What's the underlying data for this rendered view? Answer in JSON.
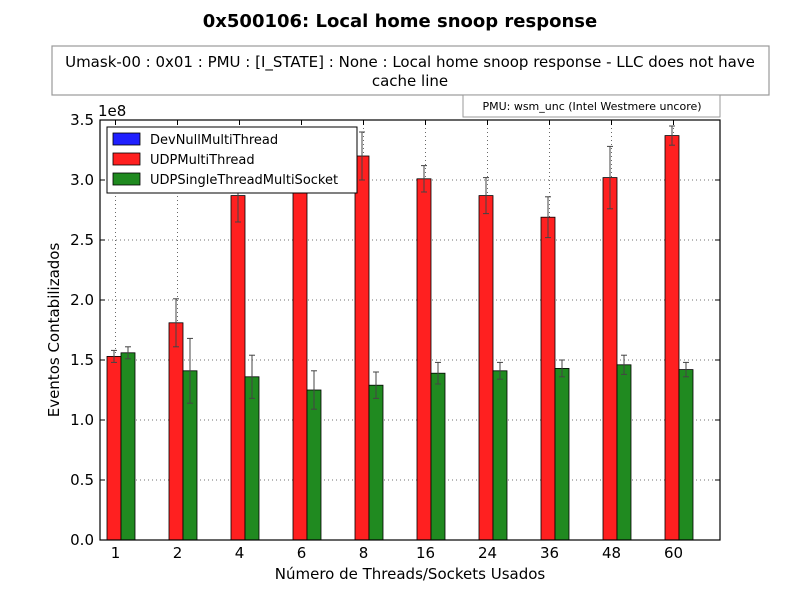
{
  "chart_data": {
    "type": "bar",
    "title": "0x500106: Local home snoop response",
    "subtitle_lines": [
      "Umask-00 : 0x01 : PMU : [I_STATE] : None : Local home snoop response - LLC does not have",
      "cache line"
    ],
    "annotation": "PMU: wsm_unc (Intel Westmere uncore)",
    "xlabel": "Número de Threads/Sockets Usados",
    "ylabel": "Eventos Contabilizados",
    "y_multiplier_label": "1e8",
    "ylim": [
      0,
      3.5
    ],
    "yticks": [
      "0.0",
      "0.5",
      "1.0",
      "1.5",
      "2.0",
      "2.5",
      "3.0",
      "3.5"
    ],
    "grid": true,
    "legend_position": "top-left",
    "categories": [
      "1",
      "2",
      "4",
      "6",
      "8",
      "16",
      "24",
      "36",
      "48",
      "60"
    ],
    "series": [
      {
        "name": "DevNullMultiThread",
        "color": "#2020ff",
        "values": [
          0,
          0,
          0,
          0,
          0,
          0,
          0,
          0,
          0,
          0
        ],
        "errors": [
          0,
          0,
          0,
          0,
          0,
          0,
          0,
          0,
          0,
          0
        ]
      },
      {
        "name": "UDPMultiThread",
        "color": "#ff2020",
        "values": [
          1.53,
          1.81,
          2.87,
          3.15,
          3.2,
          3.01,
          2.87,
          2.69,
          3.02,
          3.37
        ],
        "errors": [
          0.05,
          0.2,
          0.22,
          0.21,
          0.2,
          0.11,
          0.15,
          0.17,
          0.26,
          0.08
        ]
      },
      {
        "name": "UDPSingleThreadMultiSocket",
        "color": "#208a20",
        "values": [
          1.56,
          1.41,
          1.36,
          1.25,
          1.29,
          1.39,
          1.41,
          1.43,
          1.46,
          1.42
        ],
        "errors": [
          0.05,
          0.27,
          0.18,
          0.16,
          0.11,
          0.09,
          0.07,
          0.07,
          0.08,
          0.06
        ]
      }
    ]
  }
}
